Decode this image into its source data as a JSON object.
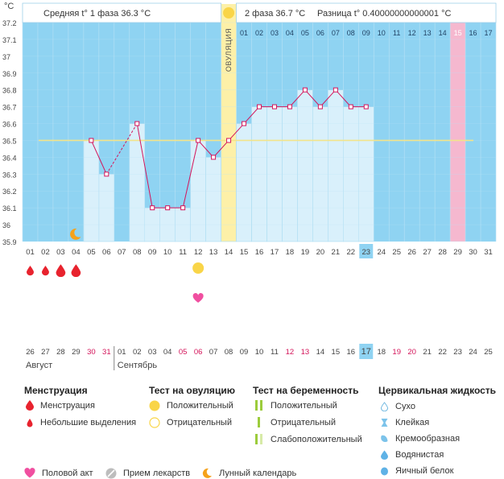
{
  "header": {
    "unit": "°C",
    "phase1": "Средняя t° 1 фаза 36.3 °C",
    "phase2": "2 фаза 36.7 °C",
    "diff": "Разница t° 0.40000000000001 °C"
  },
  "ovulation_label": "ОВУЛЯЦИЯ",
  "colors": {
    "plot_bg": "#8fd3f2",
    "bar_fill": "#d9f0fb",
    "ovulation_band": "#fdf0a8",
    "highlight_band": "#f5b8cf",
    "line": "#d4145a",
    "average_line": "#f2e48a",
    "grid": "#b9e2f5"
  },
  "chart_data": {
    "type": "line",
    "ylim": [
      35.9,
      37.2
    ],
    "y_ticks": [
      "37.2",
      "37.1",
      "37",
      "36.9",
      "36.8",
      "36.7",
      "36.6",
      "36.5",
      "36.4",
      "36.3",
      "36.2",
      "36.1",
      "36",
      "35.9"
    ],
    "cycle_days": [
      "01",
      "02",
      "03",
      "04",
      "05",
      "06",
      "07",
      "08",
      "09",
      "10",
      "11",
      "12",
      "13",
      "14",
      "15",
      "16",
      "17",
      "18",
      "19",
      "20",
      "21",
      "22",
      "23",
      "24",
      "25",
      "26",
      "27",
      "28",
      "29",
      "30",
      "31"
    ],
    "top_days": [
      "01",
      "02",
      "03",
      "04",
      "05",
      "06",
      "07",
      "08",
      "09",
      "10",
      "11",
      "12",
      "13",
      "14",
      "15",
      "16",
      "17"
    ],
    "top_days_start": 15,
    "calendar_dates": [
      "26",
      "27",
      "28",
      "29",
      "30",
      "31",
      "01",
      "02",
      "03",
      "04",
      "05",
      "06",
      "07",
      "08",
      "09",
      "10",
      "11",
      "12",
      "13",
      "14",
      "15",
      "16",
      "17",
      "18",
      "19",
      "20",
      "21",
      "22",
      "23",
      "24",
      "25"
    ],
    "red_dates": [
      5,
      6,
      11,
      12,
      18,
      19,
      25,
      26
    ],
    "months": [
      {
        "label": "Август",
        "start": 1
      },
      {
        "label": "Сентябрь",
        "start": 7
      }
    ],
    "today_cycle_day": 23,
    "today_date": "17",
    "temperatures": [
      null,
      null,
      null,
      null,
      36.5,
      36.3,
      null,
      36.6,
      36.1,
      36.1,
      36.1,
      36.5,
      36.4,
      36.5,
      36.6,
      36.7,
      36.7,
      36.7,
      36.8,
      36.7,
      36.8,
      36.7,
      36.7,
      null,
      null,
      null,
      null,
      null,
      null,
      null,
      null
    ],
    "dashed_segment": [
      6,
      8
    ],
    "average_temperature": 36.5,
    "ovulation_day": 14,
    "highlight_day": 29,
    "menstruation_days": [
      1,
      2,
      3,
      4
    ],
    "menstruation_heavy": [
      3,
      4
    ],
    "ovulation_test_positive_day": 12,
    "intercourse_day": 12,
    "moon_day": 4
  },
  "legend": {
    "menstruation": {
      "title": "Менструация",
      "items": [
        "Менструация",
        "Небольшие выделения"
      ]
    },
    "ovulation_test": {
      "title": "Тест на овуляцию",
      "items": [
        "Положительный",
        "Отрицательный"
      ]
    },
    "pregnancy_test": {
      "title": "Тест на беременность",
      "items": [
        "Положительный",
        "Отрицательный",
        "Слабоположительный"
      ]
    },
    "cervical": {
      "title": "Цервикальная жидкость",
      "items": [
        "Сухо",
        "Клейкая",
        "Кремообразная",
        "Водянистая",
        "Яичный белок"
      ]
    },
    "bottom": [
      "Половой акт",
      "Прием лекарств",
      "Лунный календарь"
    ]
  }
}
